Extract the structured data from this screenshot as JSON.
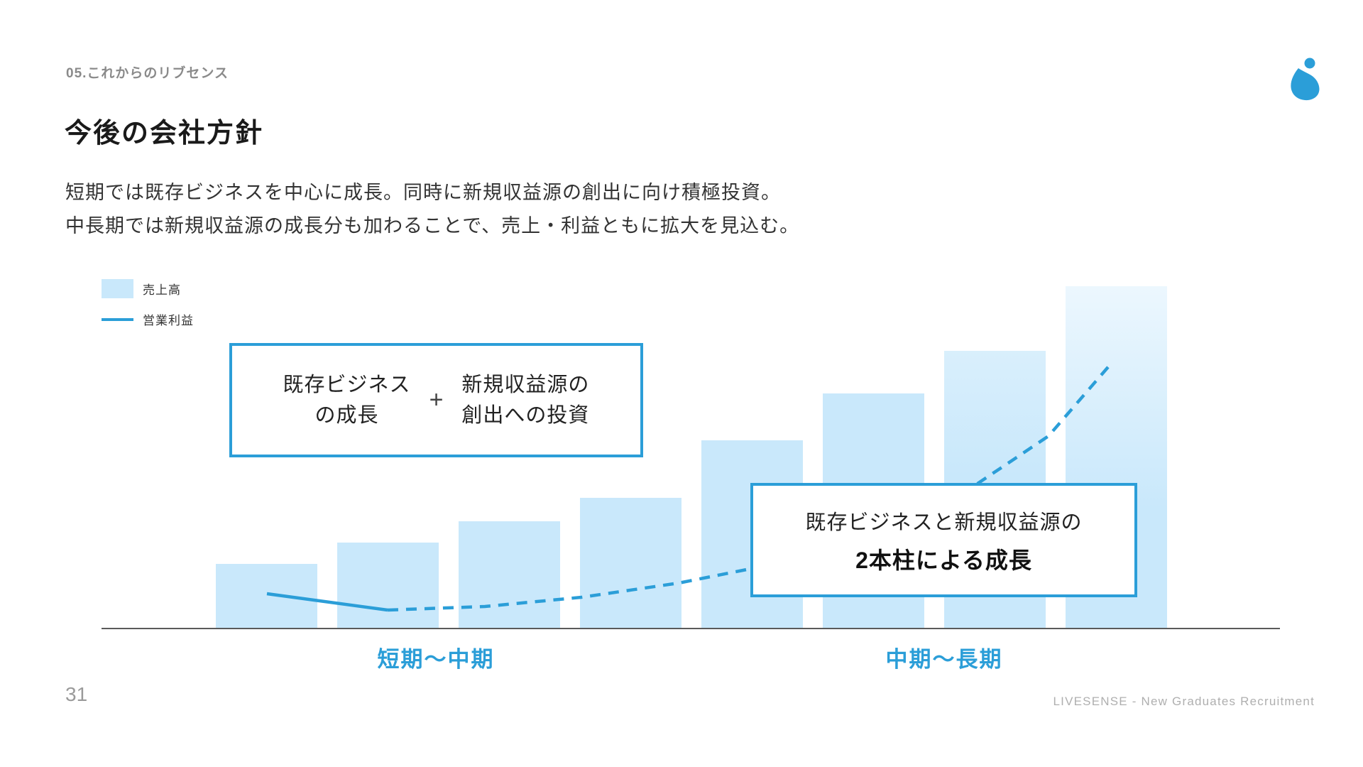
{
  "slide": {
    "section_label": "05.これからのリブセンス",
    "title": "今後の会社方針",
    "body_lines": [
      "短期では既存ビジネスを中心に成長。同時に新規収益源の創出に向け積極投資。",
      "中長期では新規収益源の成長分も加わることで、売上・利益ともに拡大を見込む。"
    ],
    "page_number": "31",
    "footer_text": "LIVESENSE - New Graduates Recruitment",
    "accent_color": "#2b9ed8",
    "bar_color": "#c9e8fb"
  },
  "chart_data": {
    "type": "bar",
    "title": "",
    "xlabel": "",
    "ylabel": "",
    "note": "Conceptual growth chart: no numeric axis is shown; bar heights are relative (% of tallest bar). Operating-profit line dips slightly (solid) then rises increasingly steeply (dashed projection).",
    "legend": [
      {
        "label": "売上高",
        "marker": "bar",
        "color": "#c9e8fb"
      },
      {
        "label": "営業利益",
        "marker": "line",
        "color": "#2b9ed8"
      }
    ],
    "categories": [
      "短期〜中期",
      "中期〜長期"
    ],
    "bar_values_pct_of_max": [
      18.7,
      24.9,
      31.2,
      38.0,
      54.9,
      68.6,
      81.1,
      100
    ],
    "profit_line": {
      "solid_points": [
        [
          233,
          433
        ],
        [
          403,
          456
        ]
      ],
      "dashed_points": [
        [
          403,
          456
        ],
        [
          540,
          451
        ],
        [
          676,
          438
        ],
        [
          813,
          418
        ],
        [
          949,
          391
        ],
        [
          1086,
          348
        ],
        [
          1222,
          286
        ],
        [
          1334,
          211
        ],
        [
          1423,
          108
        ]
      ]
    },
    "annotations": {
      "formula_box": {
        "left_lines": [
          "既存ビジネス",
          "の成長"
        ],
        "operator": "+",
        "right_lines": [
          "新規収益源の",
          "創出への投資"
        ]
      },
      "pillar_box": {
        "line1": "既存ビジネスと新規収益源の",
        "line2": "2本柱による成長"
      }
    }
  }
}
